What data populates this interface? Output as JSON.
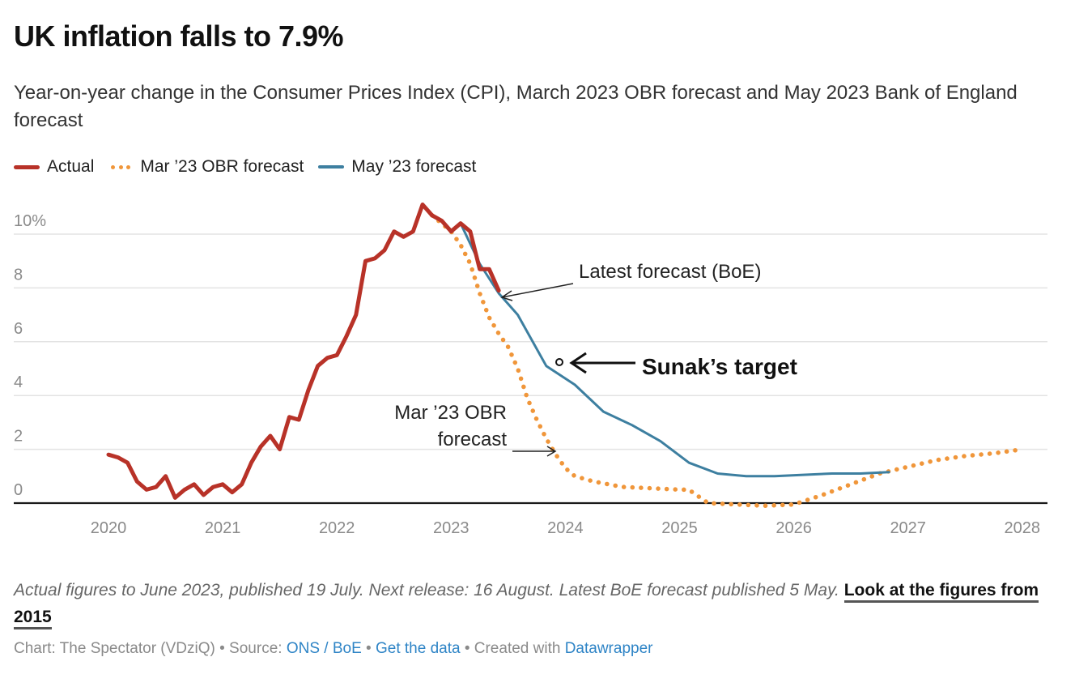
{
  "header": {
    "title": "UK inflation falls to 7.9%",
    "subtitle": "Year-on-year change in the Consumer Prices Index (CPI), March 2023 OBR forecast and May 2023 Bank of England forecast"
  },
  "legend": [
    {
      "label": "Actual",
      "style": "solid",
      "color": "#b83228"
    },
    {
      "label": "Mar ’23 OBR forecast",
      "style": "dotted",
      "color": "#f0963a"
    },
    {
      "label": "May ’23 forecast",
      "style": "solid",
      "color": "#3d7fa0"
    }
  ],
  "chart_data": {
    "type": "line",
    "title": "UK inflation falls to 7.9%",
    "xlabel": "",
    "ylabel": "",
    "xlim": [
      2019.6,
      2028.2
    ],
    "ylim": [
      0,
      11
    ],
    "grid": true,
    "legend_position": "top-left",
    "x_ticks": [
      2020,
      2021,
      2022,
      2023,
      2024,
      2025,
      2026,
      2027,
      2028
    ],
    "x_tick_labels": [
      "2020",
      "2021",
      "2022",
      "2023",
      "2024",
      "2025",
      "2026",
      "2027",
      "2028"
    ],
    "y_ticks": [
      0,
      2,
      4,
      6,
      8,
      10
    ],
    "y_tick_labels": [
      "0",
      "2",
      "4",
      "6",
      "8",
      "10%"
    ],
    "series": [
      {
        "name": "Actual",
        "color": "#b83228",
        "style": "solid",
        "x": [
          2020.0,
          2020.083,
          2020.167,
          2020.25,
          2020.333,
          2020.417,
          2020.5,
          2020.583,
          2020.667,
          2020.75,
          2020.833,
          2020.917,
          2021.0,
          2021.083,
          2021.167,
          2021.25,
          2021.333,
          2021.417,
          2021.5,
          2021.583,
          2021.667,
          2021.75,
          2021.833,
          2021.917,
          2022.0,
          2022.083,
          2022.167,
          2022.25,
          2022.333,
          2022.417,
          2022.5,
          2022.583,
          2022.667,
          2022.75,
          2022.833,
          2022.917,
          2023.0,
          2023.083,
          2023.167,
          2023.25,
          2023.333,
          2023.417
        ],
        "values": [
          1.8,
          1.7,
          1.5,
          0.8,
          0.5,
          0.6,
          1.0,
          0.2,
          0.5,
          0.7,
          0.3,
          0.6,
          0.7,
          0.4,
          0.7,
          1.5,
          2.1,
          2.5,
          2.0,
          3.2,
          3.1,
          4.2,
          5.1,
          5.4,
          5.5,
          6.2,
          7.0,
          9.0,
          9.1,
          9.4,
          10.1,
          9.9,
          10.1,
          11.1,
          10.7,
          10.5,
          10.1,
          10.4,
          10.1,
          8.7,
          8.7,
          7.9
        ]
      },
      {
        "name": "Mar ’23 OBR forecast",
        "color": "#f0963a",
        "style": "dotted",
        "x": [
          2022.833,
          2022.917,
          2023.0,
          2023.083,
          2023.167,
          2023.25,
          2023.333,
          2023.417,
          2023.5,
          2023.583,
          2023.667,
          2023.75,
          2023.833,
          2023.917,
          2024.0,
          2024.083,
          2024.167,
          2024.25,
          2024.5,
          2024.75,
          2025.0,
          2025.08,
          2025.25,
          2025.5,
          2025.75,
          2026.0,
          2026.25,
          2026.5,
          2026.75,
          2027.0,
          2027.25,
          2027.5,
          2027.75,
          2028.0
        ],
        "values": [
          10.7,
          10.4,
          10.1,
          9.6,
          8.9,
          7.8,
          6.9,
          6.3,
          5.8,
          5.0,
          3.9,
          3.1,
          2.4,
          1.8,
          1.3,
          1.0,
          0.9,
          0.8,
          0.6,
          0.55,
          0.5,
          0.5,
          0.0,
          -0.05,
          -0.1,
          -0.05,
          0.3,
          0.7,
          1.1,
          1.35,
          1.6,
          1.75,
          1.85,
          2.0
        ]
      },
      {
        "name": "May ’23 forecast",
        "color": "#3d7fa0",
        "style": "solid",
        "x": [
          2023.083,
          2023.25,
          2023.417,
          2023.583,
          2023.833,
          2024.083,
          2024.333,
          2024.583,
          2024.833,
          2025.083,
          2025.333,
          2025.583,
          2025.833,
          2026.083,
          2026.333,
          2026.583,
          2026.833
        ],
        "values": [
          10.4,
          8.9,
          7.8,
          7.0,
          5.1,
          4.4,
          3.4,
          2.9,
          2.3,
          1.5,
          1.1,
          1.0,
          1.0,
          1.05,
          1.1,
          1.1,
          1.15
        ]
      }
    ],
    "annotations": [
      {
        "id": "boe",
        "text": "Latest forecast (BoE)",
        "x": 2023.42,
        "y": 7.7
      },
      {
        "id": "sunak",
        "text": "Sunak’s target",
        "x": 2023.92,
        "y": 5.3,
        "marker": "circle"
      },
      {
        "id": "obr",
        "text_lines": [
          "Mar ’23 OBR",
          "forecast"
        ],
        "x": 2023.9,
        "y": 1.9
      }
    ]
  },
  "notes": {
    "text": "Actual figures to June 2023, published 19 July. Next release: 16 August. Latest BoE forecast published 5 May. ",
    "link": "Look at the figures from 2015"
  },
  "footer": {
    "chart_prefix": "Chart: The Spectator (VDziQ) • Source: ",
    "source_link": "ONS / BoE",
    "sep1": " • ",
    "data_link": "Get the data",
    "sep2": " • Created with ",
    "tool_link": "Datawrapper"
  }
}
